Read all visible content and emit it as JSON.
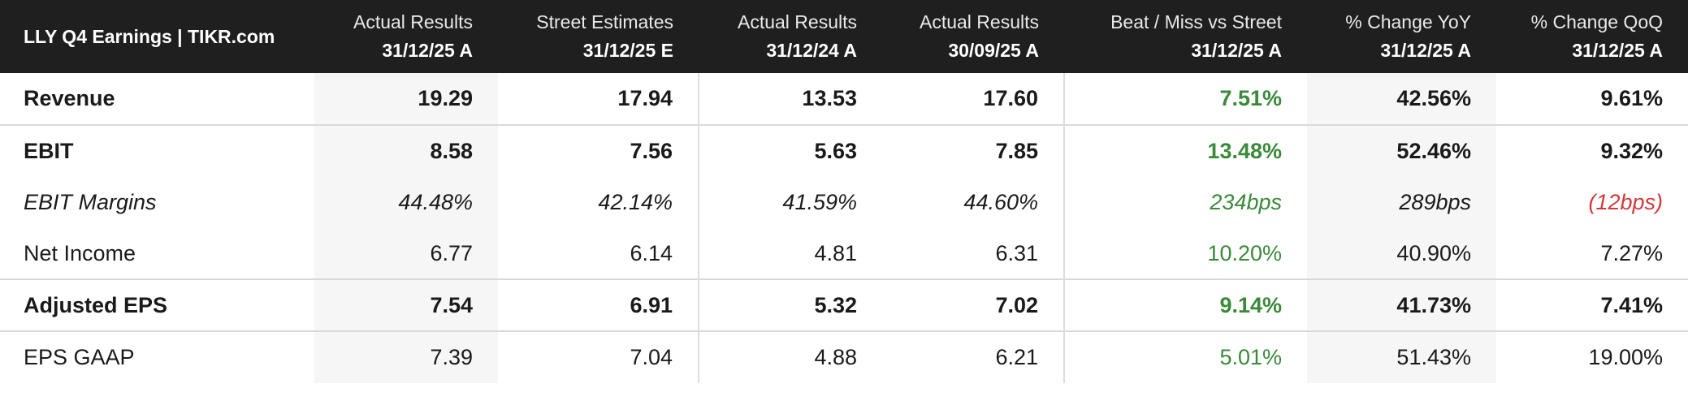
{
  "title": "LLY Q4 Earnings | TIKR.com",
  "colors": {
    "header_bg": "#1f1f1f",
    "positive": "#3a8a3a",
    "negative": "#d23a3a",
    "shaded_column": "#f6f6f6"
  },
  "columns": [
    {
      "line1": "Actual Results",
      "line2": "31/12/25 A"
    },
    {
      "line1": "Street Estimates",
      "line2": "31/12/25 E"
    },
    {
      "line1": "Actual Results",
      "line2": "31/12/24 A"
    },
    {
      "line1": "Actual Results",
      "line2": "30/09/25 A"
    },
    {
      "line1": "Beat / Miss vs Street",
      "line2": "31/12/25 A"
    },
    {
      "line1": "% Change YoY",
      "line2": "31/12/25 A"
    },
    {
      "line1": "% Change QoQ",
      "line2": "31/12/25 A"
    }
  ],
  "rows": [
    {
      "label": "Revenue",
      "values": [
        "19.29",
        "17.94",
        "13.53",
        "17.60",
        "7.51%",
        "42.56%",
        "9.61%"
      ]
    },
    {
      "label": "EBIT",
      "values": [
        "8.58",
        "7.56",
        "5.63",
        "7.85",
        "13.48%",
        "52.46%",
        "9.32%"
      ]
    },
    {
      "label": "EBIT Margins",
      "values": [
        "44.48%",
        "42.14%",
        "41.59%",
        "44.60%",
        "234bps",
        "289bps",
        "(12bps)"
      ]
    },
    {
      "label": "Net Income",
      "values": [
        "6.77",
        "6.14",
        "4.81",
        "6.31",
        "10.20%",
        "40.90%",
        "7.27%"
      ]
    },
    {
      "label": "Adjusted EPS",
      "values": [
        "7.54",
        "6.91",
        "5.32",
        "7.02",
        "9.14%",
        "41.73%",
        "7.41%"
      ]
    },
    {
      "label": "EPS GAAP",
      "values": [
        "7.39",
        "7.04",
        "4.88",
        "6.21",
        "5.01%",
        "51.43%",
        "19.00%"
      ]
    }
  ]
}
